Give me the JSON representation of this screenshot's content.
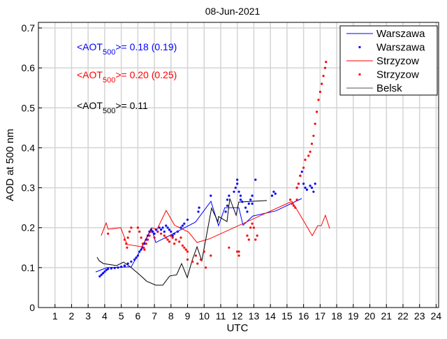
{
  "chart_data": {
    "type": "line",
    "title": "08-Jun-2021",
    "xlabel": "UTC",
    "ylabel": "AOD at 500 nm",
    "xlim": [
      0,
      24.15
    ],
    "ylim": [
      0,
      0.714
    ],
    "xticks": [
      "1",
      "2",
      "3",
      "4",
      "5",
      "6",
      "7",
      "8",
      "9",
      "10",
      "11",
      "12",
      "13",
      "14",
      "15",
      "16",
      "17",
      "18",
      "19",
      "20",
      "21",
      "22",
      "23",
      "24"
    ],
    "yticks": [
      "0",
      "0.1",
      "0.2",
      "0.3",
      "0.4",
      "0.5",
      "0.6",
      "0.7"
    ],
    "grid": true,
    "legend_position": "top-right",
    "legend": [
      {
        "label": "Warszawa",
        "kind": "line",
        "color": "#0000ff"
      },
      {
        "label": "Warszawa",
        "kind": "dot",
        "color": "#0000ff"
      },
      {
        "label": "Strzyzow",
        "kind": "line",
        "color": "#ff0000"
      },
      {
        "label": "Strzyzow",
        "kind": "dot",
        "color": "#ff0000"
      },
      {
        "label": "Belsk",
        "kind": "line",
        "color": "#000000"
      }
    ],
    "annotations": [
      {
        "prefix": "<AOT",
        "sub": "500",
        "suffix": ">= 0.18 (0.19)",
        "color": "#0000ff"
      },
      {
        "prefix": "<AOT",
        "sub": "500",
        "suffix": ">= 0.20 (0.25)",
        "color": "#ff0000"
      },
      {
        "prefix": "<AOT",
        "sub": "500",
        "suffix": ">= 0.11",
        "color": "#000000"
      }
    ],
    "series": [
      {
        "name": "Warszawa",
        "kind": "line",
        "color": "#0000ff",
        "points": [
          [
            3.46,
            0.089
          ],
          [
            4.13,
            0.1
          ],
          [
            5.6,
            0.102
          ],
          [
            6.11,
            0.14
          ],
          [
            6.83,
            0.198
          ],
          [
            7.08,
            0.163
          ],
          [
            8.09,
            0.184
          ],
          [
            9.48,
            0.214
          ],
          [
            10.41,
            0.266
          ],
          [
            10.87,
            0.205
          ],
          [
            11.25,
            0.25
          ],
          [
            12.09,
            0.25
          ],
          [
            12.35,
            0.206
          ],
          [
            12.94,
            0.229
          ],
          [
            14.33,
            0.242
          ],
          [
            15.89,
            0.273
          ]
        ]
      },
      {
        "name": "Strzyzow",
        "kind": "line",
        "color": "#ff0000",
        "points": [
          [
            3.79,
            0.18
          ],
          [
            4.09,
            0.212
          ],
          [
            4.21,
            0.196
          ],
          [
            4.97,
            0.2
          ],
          [
            5.35,
            0.158
          ],
          [
            6.24,
            0.152
          ],
          [
            6.83,
            0.2
          ],
          [
            7.16,
            0.196
          ],
          [
            7.71,
            0.243
          ],
          [
            8.22,
            0.206
          ],
          [
            9.06,
            0.189
          ],
          [
            9.57,
            0.163
          ],
          [
            10.32,
            0.172
          ],
          [
            15.3,
            0.266
          ],
          [
            15.93,
            0.222
          ],
          [
            16.52,
            0.18
          ],
          [
            16.86,
            0.205
          ],
          [
            17.07,
            0.205
          ],
          [
            17.32,
            0.231
          ],
          [
            17.57,
            0.198
          ]
        ]
      },
      {
        "name": "Belsk",
        "kind": "line",
        "color": "#000000",
        "points": [
          [
            3.54,
            0.126
          ],
          [
            3.67,
            0.117
          ],
          [
            3.92,
            0.11
          ],
          [
            4.72,
            0.105
          ],
          [
            5.14,
            0.114
          ],
          [
            5.6,
            0.1
          ],
          [
            6.11,
            0.082
          ],
          [
            6.53,
            0.066
          ],
          [
            7.08,
            0.056
          ],
          [
            7.5,
            0.056
          ],
          [
            7.92,
            0.079
          ],
          [
            8.34,
            0.082
          ],
          [
            8.64,
            0.11
          ],
          [
            8.98,
            0.075
          ],
          [
            9.27,
            0.117
          ],
          [
            9.57,
            0.152
          ],
          [
            9.86,
            0.117
          ],
          [
            10.45,
            0.249
          ],
          [
            10.83,
            0.215
          ],
          [
            10.87,
            0.228
          ],
          [
            11.38,
            0.215
          ],
          [
            11.55,
            0.273
          ],
          [
            11.93,
            0.231
          ],
          [
            12.09,
            0.264
          ],
          [
            13.78,
            0.268
          ]
        ]
      },
      {
        "name": "Warszawa",
        "kind": "dot",
        "color": "#0000ff",
        "points": [
          [
            3.7,
            0.078
          ],
          [
            3.8,
            0.082
          ],
          [
            3.9,
            0.086
          ],
          [
            4.0,
            0.09
          ],
          [
            4.1,
            0.094
          ],
          [
            4.2,
            0.097
          ],
          [
            4.4,
            0.098
          ],
          [
            4.6,
            0.099
          ],
          [
            4.8,
            0.1
          ],
          [
            5.0,
            0.102
          ],
          [
            5.2,
            0.105
          ],
          [
            5.4,
            0.11
          ],
          [
            5.6,
            0.115
          ],
          [
            5.8,
            0.12
          ],
          [
            5.9,
            0.125
          ],
          [
            6.0,
            0.13
          ],
          [
            6.1,
            0.14
          ],
          [
            6.2,
            0.145
          ],
          [
            6.3,
            0.15
          ],
          [
            6.4,
            0.16
          ],
          [
            6.5,
            0.17
          ],
          [
            6.6,
            0.18
          ],
          [
            6.7,
            0.19
          ],
          [
            6.8,
            0.195
          ],
          [
            6.9,
            0.19
          ],
          [
            7.0,
            0.185
          ],
          [
            7.1,
            0.195
          ],
          [
            7.2,
            0.19
          ],
          [
            7.3,
            0.2
          ],
          [
            7.4,
            0.195
          ],
          [
            7.5,
            0.2
          ],
          [
            7.6,
            0.19
          ],
          [
            7.7,
            0.205
          ],
          [
            7.8,
            0.2
          ],
          [
            7.9,
            0.195
          ],
          [
            8.0,
            0.19
          ],
          [
            8.1,
            0.18
          ],
          [
            8.2,
            0.185
          ],
          [
            8.4,
            0.19
          ],
          [
            8.6,
            0.2
          ],
          [
            8.7,
            0.205
          ],
          [
            8.8,
            0.21
          ],
          [
            9.0,
            0.22
          ],
          [
            9.65,
            0.24
          ],
          [
            9.7,
            0.25
          ],
          [
            10.4,
            0.28
          ],
          [
            11.3,
            0.24
          ],
          [
            11.4,
            0.255
          ],
          [
            11.4,
            0.27
          ],
          [
            11.5,
            0.28
          ],
          [
            11.8,
            0.29
          ],
          [
            11.9,
            0.3
          ],
          [
            12.0,
            0.31
          ],
          [
            12.0,
            0.32
          ],
          [
            12.1,
            0.29
          ],
          [
            12.2,
            0.28
          ],
          [
            12.2,
            0.27
          ],
          [
            12.3,
            0.265
          ],
          [
            12.5,
            0.25
          ],
          [
            12.6,
            0.24
          ],
          [
            12.7,
            0.26
          ],
          [
            12.8,
            0.27
          ],
          [
            12.9,
            0.28
          ],
          [
            12.9,
            0.26
          ],
          [
            13.1,
            0.32
          ],
          [
            14.1,
            0.28
          ],
          [
            14.2,
            0.29
          ],
          [
            14.3,
            0.285
          ],
          [
            15.6,
            0.3
          ],
          [
            15.7,
            0.31
          ],
          [
            15.8,
            0.33
          ],
          [
            15.9,
            0.34
          ],
          [
            16.0,
            0.31
          ],
          [
            16.1,
            0.3
          ],
          [
            16.2,
            0.295
          ],
          [
            16.4,
            0.305
          ],
          [
            16.5,
            0.3
          ],
          [
            16.6,
            0.29
          ],
          [
            16.7,
            0.31
          ]
        ]
      },
      {
        "name": "Strzyzow",
        "kind": "dot",
        "color": "#ff0000",
        "points": [
          [
            4.2,
            0.185
          ],
          [
            5.2,
            0.17
          ],
          [
            5.3,
            0.16
          ],
          [
            5.35,
            0.15
          ],
          [
            5.4,
            0.175
          ],
          [
            5.5,
            0.19
          ],
          [
            5.6,
            0.2
          ],
          [
            6.0,
            0.2
          ],
          [
            6.1,
            0.19
          ],
          [
            6.2,
            0.175
          ],
          [
            6.3,
            0.16
          ],
          [
            6.35,
            0.15
          ],
          [
            6.4,
            0.145
          ],
          [
            6.5,
            0.16
          ],
          [
            6.6,
            0.17
          ],
          [
            6.7,
            0.18
          ],
          [
            6.8,
            0.19
          ],
          [
            7.0,
            0.175
          ],
          [
            7.2,
            0.19
          ],
          [
            7.4,
            0.185
          ],
          [
            7.6,
            0.18
          ],
          [
            7.7,
            0.175
          ],
          [
            7.8,
            0.17
          ],
          [
            7.9,
            0.165
          ],
          [
            8.0,
            0.18
          ],
          [
            8.1,
            0.175
          ],
          [
            8.2,
            0.16
          ],
          [
            8.3,
            0.17
          ],
          [
            8.5,
            0.165
          ],
          [
            8.6,
            0.175
          ],
          [
            8.7,
            0.155
          ],
          [
            8.8,
            0.15
          ],
          [
            8.9,
            0.145
          ],
          [
            9.0,
            0.14
          ],
          [
            9.0,
            0.12
          ],
          [
            9.3,
            0.115
          ],
          [
            9.5,
            0.13
          ],
          [
            9.6,
            0.11
          ],
          [
            9.8,
            0.12
          ],
          [
            10.0,
            0.14
          ],
          [
            10.1,
            0.1
          ],
          [
            10.4,
            0.13
          ],
          [
            11.5,
            0.15
          ],
          [
            12.0,
            0.14
          ],
          [
            12.1,
            0.13
          ],
          [
            12.1,
            0.14
          ],
          [
            12.6,
            0.18
          ],
          [
            12.7,
            0.17
          ],
          [
            12.8,
            0.2
          ],
          [
            12.9,
            0.21
          ],
          [
            13.0,
            0.2
          ],
          [
            13.1,
            0.17
          ],
          [
            13.2,
            0.18
          ],
          [
            15.2,
            0.27
          ],
          [
            15.3,
            0.26
          ],
          [
            15.4,
            0.255
          ],
          [
            15.5,
            0.25
          ],
          [
            15.6,
            0.27
          ],
          [
            15.6,
            0.3
          ],
          [
            15.7,
            0.31
          ],
          [
            15.8,
            0.33
          ],
          [
            16.0,
            0.35
          ],
          [
            16.1,
            0.37
          ],
          [
            16.3,
            0.38
          ],
          [
            16.4,
            0.39
          ],
          [
            16.5,
            0.41
          ],
          [
            16.6,
            0.43
          ],
          [
            16.7,
            0.46
          ],
          [
            16.8,
            0.49
          ],
          [
            16.9,
            0.52
          ],
          [
            17.0,
            0.54
          ],
          [
            17.1,
            0.56
          ],
          [
            17.2,
            0.58
          ],
          [
            17.3,
            0.6
          ],
          [
            17.35,
            0.615
          ]
        ]
      }
    ]
  }
}
